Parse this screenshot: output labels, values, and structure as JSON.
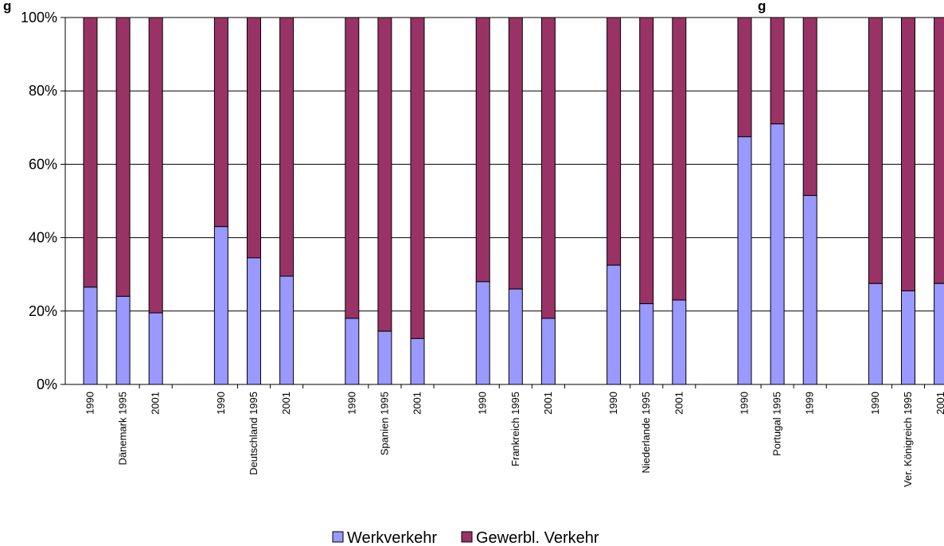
{
  "chart_data": {
    "type": "bar",
    "stacked": "percent",
    "title": "",
    "title_fragment": "g",
    "title_fragment_right": "g",
    "xlabel": "",
    "ylabel": "",
    "ylim": [
      0,
      100
    ],
    "y_ticks": [
      "0%",
      "20%",
      "40%",
      "60%",
      "80%",
      "100%"
    ],
    "grid": true,
    "legend_position": "bottom",
    "colors": {
      "werkverkehr": "#9999ff",
      "gewerbl": "#993366"
    },
    "groups": [
      {
        "country": "Dänemark",
        "years": [
          "1990",
          "1995",
          "2001"
        ],
        "werkverkehr": [
          26.5,
          24,
          19.5
        ]
      },
      {
        "country": "Deutschland",
        "years": [
          "1990",
          "1995",
          "2001"
        ],
        "werkverkehr": [
          43,
          34.5,
          29.5
        ]
      },
      {
        "country": "Spanien",
        "years": [
          "1990",
          "1995",
          "2001"
        ],
        "werkverkehr": [
          18,
          14.5,
          12.5
        ]
      },
      {
        "country": "Frankreich",
        "years": [
          "1990",
          "1995",
          "2001"
        ],
        "werkverkehr": [
          28,
          26,
          18
        ]
      },
      {
        "country": "Niederlande",
        "years": [
          "1990",
          "1995",
          "2001"
        ],
        "werkverkehr": [
          32.5,
          22,
          23
        ]
      },
      {
        "country": "Portugal",
        "years": [
          "1990",
          "1995",
          "1999"
        ],
        "werkverkehr": [
          67.5,
          71,
          51.5
        ]
      },
      {
        "country": "Ver. Königreich",
        "years": [
          "1990",
          "1995",
          "2001"
        ],
        "werkverkehr": [
          27.5,
          25.5,
          27.5
        ]
      }
    ],
    "series": [
      {
        "name": "Werkverkehr"
      },
      {
        "name": "Gewerbl. Verkehr"
      }
    ]
  }
}
